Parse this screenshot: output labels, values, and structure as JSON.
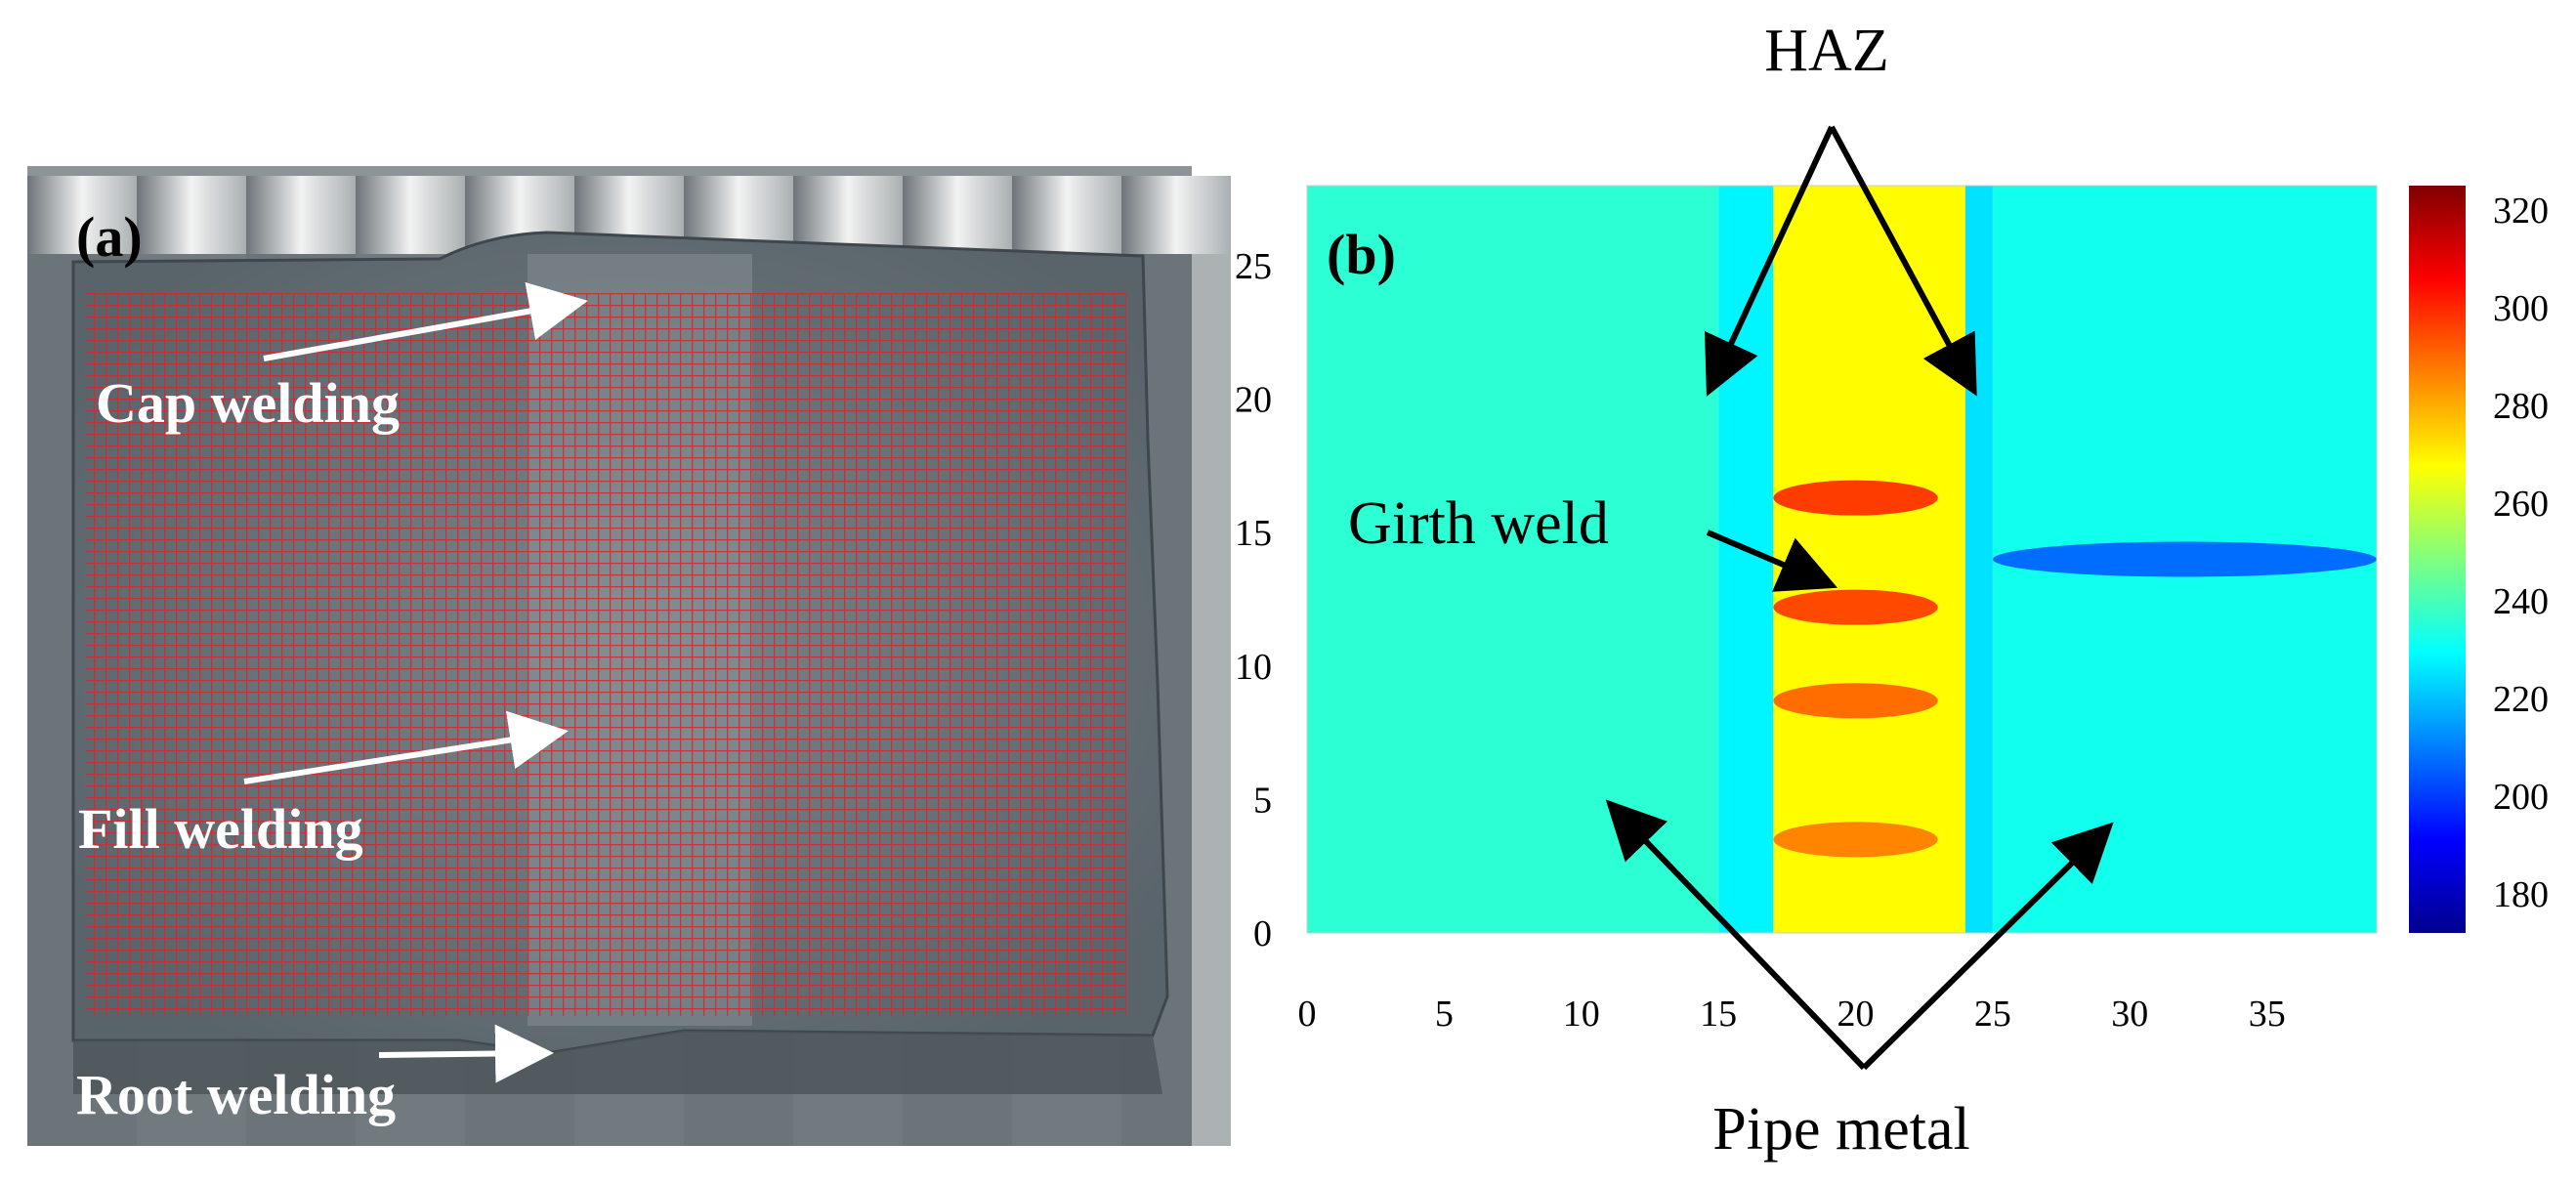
{
  "panel_a": {
    "label": "(a)",
    "annotations": {
      "cap": "Cap welding",
      "fill": "Fill welding",
      "root": "Root welding"
    },
    "colors": {
      "grid": "#d8262c",
      "arrow": "#ffffff"
    }
  },
  "panel_b": {
    "label": "(b)",
    "annotations": {
      "haz": "HAZ",
      "girth": "Girth   weld",
      "pipe": "Pipe metal"
    }
  },
  "chart_data": {
    "type": "heatmap",
    "title": "",
    "xlabel": "",
    "ylabel": "",
    "x_ticks": [
      "0",
      "5",
      "10",
      "15",
      "20",
      "25",
      "30",
      "35"
    ],
    "y_ticks": [
      "0",
      "5",
      "10",
      "15",
      "20",
      "25"
    ],
    "xlim": [
      0,
      39
    ],
    "ylim": [
      0,
      28
    ],
    "colorbar": {
      "ticks": [
        "320",
        "300",
        "280",
        "260",
        "240",
        "220",
        "200",
        "180"
      ],
      "range": [
        172,
        325
      ],
      "colormap": "jet"
    },
    "regions": [
      {
        "name": "Pipe metal (left)",
        "x_range": [
          0,
          15
        ],
        "value": 236
      },
      {
        "name": "HAZ (left)",
        "x_range": [
          15,
          17
        ],
        "value": 228
      },
      {
        "name": "Girth weld",
        "x_range": [
          17,
          24
        ],
        "value": 268
      },
      {
        "name": "HAZ (right)",
        "x_range": [
          24,
          25
        ],
        "value": 225
      },
      {
        "name": "Pipe metal (right)",
        "x_range": [
          25,
          39
        ],
        "value": 232
      }
    ],
    "features": [
      {
        "name": "hot band",
        "x_range": [
          17,
          23
        ],
        "y": 16.3,
        "value": 300
      },
      {
        "name": "hot band",
        "x_range": [
          17,
          23
        ],
        "y": 12.2,
        "value": 298
      },
      {
        "name": "hot band",
        "x_range": [
          17,
          23
        ],
        "y": 8.7,
        "value": 292
      },
      {
        "name": "hot band",
        "x_range": [
          17,
          23
        ],
        "y": 3.5,
        "value": 288
      },
      {
        "name": "low band",
        "x_range": [
          25,
          39
        ],
        "y": 14,
        "value": 205
      }
    ]
  }
}
